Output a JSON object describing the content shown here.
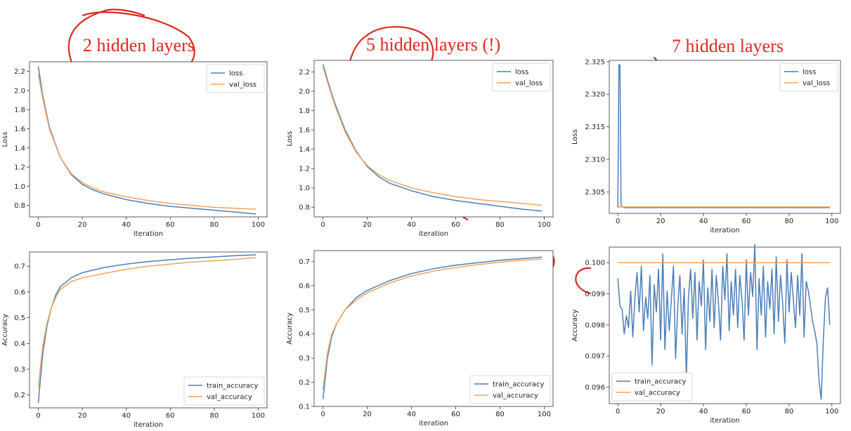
{
  "colors": {
    "series1": "#4c7fb8",
    "series2": "#f5a25d",
    "annotation": "#e0271e"
  },
  "annotations": {
    "titles": [
      "2 hidden layers",
      "5 hidden layers (!)",
      "7 hidden layers"
    ]
  },
  "chart_data": [
    {
      "type": "line",
      "xlabel": "iteration",
      "ylabel": "Loss",
      "xlim": [
        -4,
        104
      ],
      "ylim": [
        0.68,
        2.3
      ],
      "xticks": [
        0,
        20,
        40,
        60,
        80,
        100
      ],
      "yticks": [
        0.8,
        1.0,
        1.2,
        1.4,
        1.6,
        1.8,
        2.0,
        2.2
      ],
      "legend": "top-right",
      "series": [
        {
          "name": "loss",
          "x": [
            0,
            2,
            5,
            10,
            15,
            20,
            25,
            30,
            40,
            50,
            60,
            70,
            80,
            90,
            99
          ],
          "values": [
            2.25,
            1.95,
            1.62,
            1.3,
            1.12,
            1.02,
            0.96,
            0.92,
            0.86,
            0.82,
            0.79,
            0.77,
            0.75,
            0.73,
            0.71
          ]
        },
        {
          "name": "val_loss",
          "x": [
            0,
            2,
            5,
            10,
            15,
            20,
            25,
            30,
            40,
            50,
            60,
            70,
            80,
            90,
            99
          ],
          "values": [
            2.17,
            1.92,
            1.6,
            1.3,
            1.13,
            1.04,
            0.98,
            0.94,
            0.89,
            0.85,
            0.82,
            0.8,
            0.78,
            0.77,
            0.76
          ]
        }
      ]
    },
    {
      "type": "line",
      "xlabel": "iteration",
      "ylabel": "Loss",
      "xlim": [
        -4,
        104
      ],
      "ylim": [
        0.7,
        2.32
      ],
      "xticks": [
        0,
        20,
        40,
        60,
        80,
        100
      ],
      "yticks": [
        0.8,
        1.0,
        1.2,
        1.4,
        1.6,
        1.8,
        2.0,
        2.2
      ],
      "legend": "top-right",
      "series": [
        {
          "name": "loss",
          "x": [
            0,
            2,
            5,
            10,
            15,
            20,
            25,
            30,
            40,
            50,
            60,
            70,
            80,
            90,
            99
          ],
          "values": [
            2.28,
            2.12,
            1.9,
            1.6,
            1.38,
            1.22,
            1.12,
            1.05,
            0.97,
            0.91,
            0.87,
            0.84,
            0.81,
            0.78,
            0.76
          ]
        },
        {
          "name": "val_loss",
          "x": [
            0,
            2,
            5,
            10,
            15,
            20,
            25,
            30,
            40,
            50,
            60,
            70,
            80,
            90,
            99
          ],
          "values": [
            2.25,
            2.1,
            1.88,
            1.58,
            1.37,
            1.23,
            1.14,
            1.08,
            1.0,
            0.95,
            0.91,
            0.88,
            0.86,
            0.84,
            0.82
          ]
        }
      ]
    },
    {
      "type": "line",
      "xlabel": "iteration",
      "ylabel": "Loss",
      "xlim": [
        -4,
        104
      ],
      "ylim": [
        2.3017,
        2.3252
      ],
      "xticks": [
        0,
        20,
        40,
        60,
        80,
        100
      ],
      "yticks": [
        2.305,
        2.31,
        2.315,
        2.32,
        2.325
      ],
      "legend": "top-right",
      "series": [
        {
          "name": "loss",
          "x": [
            0,
            0.5,
            1,
            1.5,
            2,
            3,
            10,
            20,
            30,
            40,
            50,
            60,
            70,
            80,
            90,
            99
          ],
          "values": [
            2.3026,
            2.3245,
            2.3245,
            2.303,
            2.3027,
            2.3026,
            2.3026,
            2.3026,
            2.3026,
            2.3026,
            2.3026,
            2.3026,
            2.3026,
            2.3026,
            2.3026,
            2.3026
          ]
        },
        {
          "name": "val_loss",
          "x": [
            0,
            20,
            40,
            60,
            80,
            99
          ],
          "values": [
            2.3027,
            2.3027,
            2.3027,
            2.3027,
            2.3027,
            2.3027
          ]
        }
      ]
    },
    {
      "type": "line",
      "xlabel": "iteration",
      "ylabel": "Accuracy",
      "xlim": [
        -4,
        104
      ],
      "ylim": [
        0.15,
        0.755
      ],
      "xticks": [
        0,
        20,
        40,
        60,
        80,
        100
      ],
      "yticks": [
        0.2,
        0.3,
        0.4,
        0.5,
        0.6,
        0.7
      ],
      "legend": "bottom-right",
      "series": [
        {
          "name": "train_accuracy",
          "x": [
            0,
            2,
            4,
            6,
            8,
            10,
            15,
            20,
            30,
            40,
            50,
            60,
            70,
            80,
            90,
            99
          ],
          "values": [
            0.17,
            0.36,
            0.47,
            0.54,
            0.59,
            0.62,
            0.655,
            0.675,
            0.695,
            0.708,
            0.718,
            0.725,
            0.731,
            0.736,
            0.741,
            0.744
          ]
        },
        {
          "name": "val_accuracy",
          "x": [
            0,
            2,
            4,
            6,
            8,
            10,
            15,
            20,
            30,
            40,
            50,
            60,
            70,
            80,
            90,
            99
          ],
          "values": [
            0.23,
            0.39,
            0.48,
            0.54,
            0.58,
            0.61,
            0.64,
            0.655,
            0.672,
            0.688,
            0.7,
            0.708,
            0.716,
            0.721,
            0.727,
            0.733
          ]
        }
      ]
    },
    {
      "type": "line",
      "xlabel": "iteration",
      "ylabel": "Accuracy",
      "xlim": [
        -4,
        104
      ],
      "ylim": [
        0.1,
        0.745
      ],
      "xticks": [
        0,
        20,
        40,
        60,
        80,
        100
      ],
      "yticks": [
        0.1,
        0.2,
        0.3,
        0.4,
        0.5,
        0.6,
        0.7
      ],
      "legend": "bottom-right",
      "series": [
        {
          "name": "train_accuracy",
          "x": [
            0,
            2,
            4,
            6,
            8,
            10,
            15,
            20,
            30,
            40,
            50,
            60,
            70,
            80,
            90,
            99
          ],
          "values": [
            0.13,
            0.3,
            0.39,
            0.44,
            0.47,
            0.5,
            0.55,
            0.58,
            0.62,
            0.65,
            0.67,
            0.685,
            0.695,
            0.705,
            0.712,
            0.718
          ]
        },
        {
          "name": "val_accuracy",
          "x": [
            0,
            2,
            4,
            6,
            8,
            10,
            15,
            20,
            30,
            40,
            50,
            60,
            70,
            80,
            90,
            99
          ],
          "values": [
            0.17,
            0.32,
            0.4,
            0.44,
            0.47,
            0.5,
            0.54,
            0.57,
            0.61,
            0.64,
            0.66,
            0.675,
            0.687,
            0.697,
            0.705,
            0.71
          ]
        }
      ]
    },
    {
      "type": "line",
      "xlabel": "iteration",
      "ylabel": "Accuracy",
      "xlim": [
        -4,
        104
      ],
      "ylim": [
        0.09547,
        0.1005
      ],
      "xticks": [
        0,
        20,
        40,
        60,
        80,
        100
      ],
      "yticks": [
        0.096,
        0.097,
        0.098,
        0.099,
        0.1
      ],
      "legend": "bottom-left",
      "series": [
        {
          "name": "train_accuracy",
          "x": [
            0,
            1,
            2,
            3,
            4,
            5,
            6,
            7,
            8,
            9,
            10,
            11,
            12,
            13,
            14,
            15,
            16,
            17,
            18,
            19,
            20,
            21,
            22,
            23,
            24,
            25,
            26,
            27,
            28,
            29,
            30,
            31,
            32,
            33,
            34,
            35,
            36,
            37,
            38,
            39,
            40,
            41,
            42,
            43,
            44,
            45,
            46,
            47,
            48,
            49,
            50,
            51,
            52,
            53,
            54,
            55,
            56,
            57,
            58,
            59,
            60,
            61,
            62,
            63,
            64,
            65,
            66,
            67,
            68,
            69,
            70,
            71,
            72,
            73,
            74,
            75,
            76,
            77,
            78,
            79,
            80,
            81,
            82,
            83,
            84,
            85,
            86,
            87,
            88,
            89,
            90,
            91,
            92,
            93,
            94,
            95,
            96,
            97,
            98,
            99
          ],
          "values": [
            0.0995,
            0.0986,
            0.0985,
            0.0977,
            0.0983,
            0.0979,
            0.0991,
            0.0976,
            0.0989,
            0.0997,
            0.0984,
            0.0999,
            0.0978,
            0.0989,
            0.0982,
            0.0996,
            0.0967,
            0.0993,
            0.0984,
            0.0998,
            0.0975,
            0.1003,
            0.0972,
            0.0991,
            0.0978,
            0.0988,
            0.0999,
            0.0969,
            0.0986,
            0.0996,
            0.0977,
            0.0992,
            0.0963,
            0.0989,
            0.0998,
            0.0982,
            0.0997,
            0.0975,
            0.0994,
            0.0986,
            0.1001,
            0.0972,
            0.0992,
            0.0981,
            0.0998,
            0.0979,
            0.0996,
            0.0987,
            0.0975,
            0.0999,
            0.0988,
            0.1003,
            0.0978,
            0.0994,
            0.0983,
            0.0998,
            0.0979,
            0.0996,
            0.0988,
            0.0975,
            0.1001,
            0.0983,
            0.0997,
            0.0989,
            0.1006,
            0.0972,
            0.0995,
            0.0983,
            0.0999,
            0.0976,
            0.0994,
            0.0985,
            0.0998,
            0.0977,
            0.1002,
            0.0981,
            0.0996,
            0.0987,
            0.0974,
            0.1001,
            0.0984,
            0.0997,
            0.0988,
            0.0979,
            0.0996,
            0.0983,
            0.1003,
            0.0976,
            0.0994,
            0.0991,
            0.0986,
            0.0981,
            0.0978,
            0.0974,
            0.0962,
            0.0956,
            0.0975,
            0.0989,
            0.0992,
            0.098
          ]
        },
        {
          "name": "val_accuracy",
          "x": [
            0,
            20,
            40,
            60,
            80,
            99
          ],
          "values": [
            0.1,
            0.1,
            0.1,
            0.1,
            0.1,
            0.1
          ]
        }
      ]
    }
  ]
}
